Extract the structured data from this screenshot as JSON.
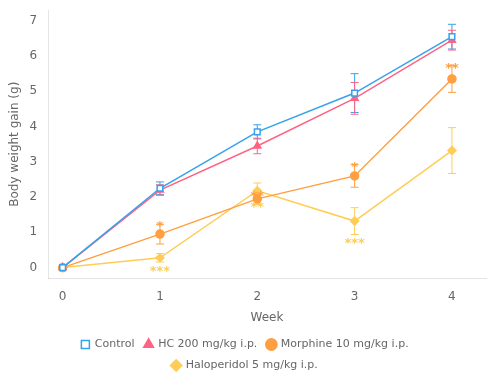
{
  "chart_data": {
    "type": "line",
    "x": [
      0,
      1,
      2,
      3,
      4
    ],
    "series": [
      {
        "name": "Control",
        "values": [
          0,
          2.25,
          3.85,
          4.95,
          6.55
        ],
        "yerr": [
          0,
          0.18,
          0.2,
          0.55,
          0.35
        ],
        "marker": "square_open"
      },
      {
        "name": "HC 200 mg/kg i.p.",
        "values": [
          0,
          2.2,
          3.45,
          4.8,
          6.45
        ],
        "yerr": [
          0,
          0.15,
          0.22,
          0.45,
          0.28
        ],
        "marker": "triangle"
      },
      {
        "name": "Morphine 10 mg/kg i.p.",
        "values": [
          0,
          0.95,
          1.95,
          2.6,
          5.35
        ],
        "yerr": [
          0,
          0.28,
          0.15,
          0.32,
          0.38
        ],
        "marker": "circle"
      },
      {
        "name": "Haloperidol 5 mg/kg i.p.",
        "values": [
          0,
          0.28,
          2.18,
          1.32,
          3.32
        ],
        "yerr": [
          0,
          0.12,
          0.22,
          0.38,
          0.65
        ],
        "marker": "diamond"
      }
    ],
    "xlabel": "Week",
    "ylabel": "Body weight gain (g)",
    "xlim": [
      -0.15,
      4.35
    ],
    "ylim": [
      -0.3,
      7.3
    ],
    "xticks": [
      0,
      1,
      2,
      3,
      4
    ],
    "yticks": [
      0,
      1,
      2,
      3,
      4,
      5,
      6,
      7
    ],
    "grid": false,
    "legend": "bottom",
    "annotations": [
      {
        "text": "*",
        "x": 1,
        "series": "Morphine 10 mg/kg i.p.",
        "position": "above"
      },
      {
        "text": "***",
        "x": 1,
        "series": "Haloperidol 5 mg/kg i.p.",
        "position": "below"
      },
      {
        "text": "**",
        "x": 2,
        "series": "Morphine 10 mg/kg i.p.",
        "position": "above"
      },
      {
        "text": "**",
        "x": 2,
        "series": "Haloperidol 5 mg/kg i.p.",
        "position": "below"
      },
      {
        "text": "*",
        "x": 3,
        "series": "Morphine 10 mg/kg i.p.",
        "position": "above"
      },
      {
        "text": "***",
        "x": 3,
        "series": "Haloperidol 5 mg/kg i.p.",
        "position": "below"
      },
      {
        "text": "**",
        "x": 4,
        "series": "Morphine 10 mg/kg i.p.",
        "position": "above"
      }
    ]
  }
}
